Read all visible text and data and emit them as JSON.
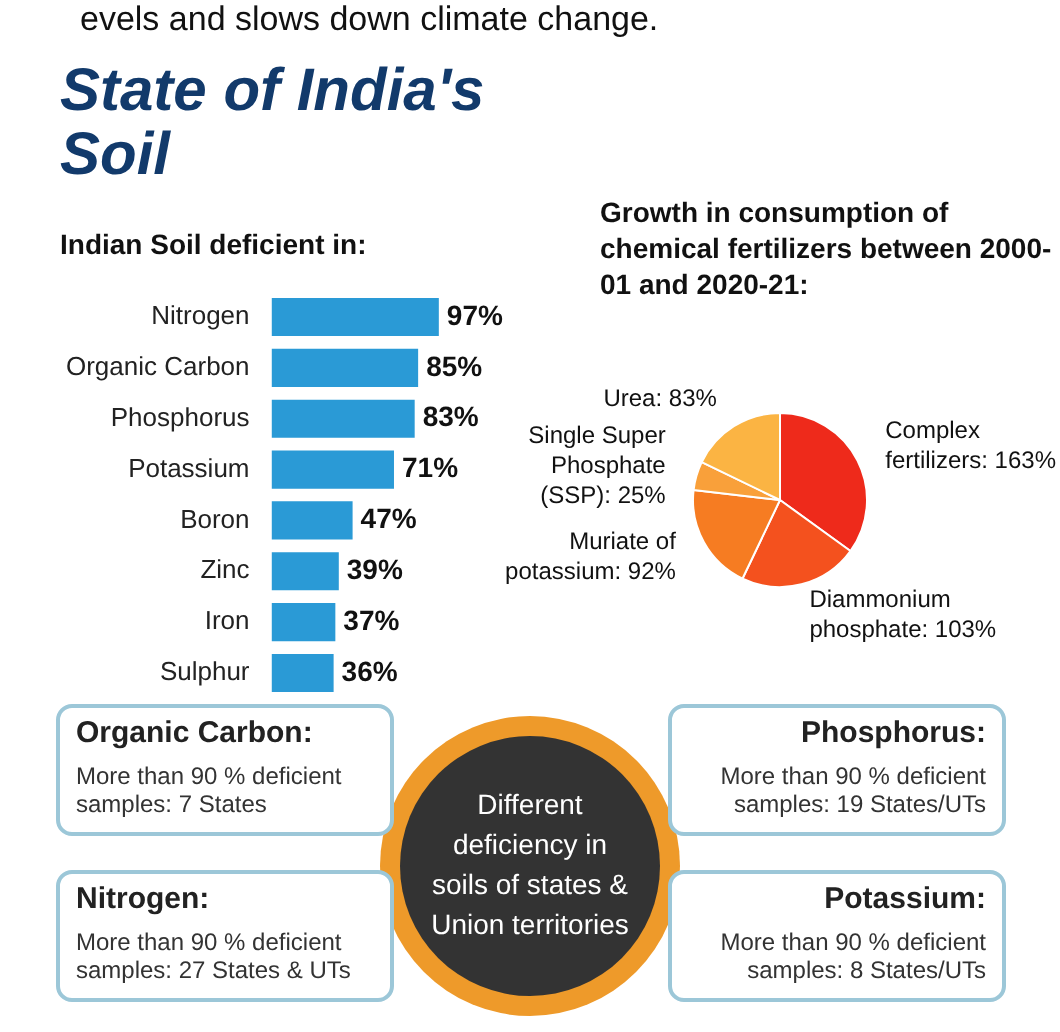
{
  "chart_data": [
    {
      "type": "bar",
      "orientation": "horizontal",
      "title": "State of India's Soil",
      "subtitle": "Indian Soil deficient in:",
      "annotations": [
        "evels and slows down climate change."
      ],
      "categories": [
        "Nitrogen",
        "Organic Carbon",
        "Phosphorus",
        "Potassium",
        "Boron",
        "Zinc",
        "Iron",
        "Sulphur"
      ],
      "values": [
        97,
        85,
        83,
        71,
        47,
        39,
        37,
        36
      ],
      "color": "#2a9ad6",
      "xlim": [
        0,
        100
      ],
      "tick_labels": "y",
      "value_labels": [
        "97%",
        "85%",
        "83%",
        "71%",
        "47%",
        "39%",
        "37%",
        "36%"
      ],
      "legend": false
    },
    {
      "type": "pie",
      "title": "Growth in consumption of chemical fertilizers between 2000-01 and 2020-21:",
      "categories": [
        "Complex fertilizers",
        "Diammonium phosphate",
        "Muriate of potassium",
        "Single Super Phosphate (SSP)",
        "Urea"
      ],
      "values": [
        163,
        103,
        92,
        25,
        83
      ],
      "colors": [
        "#ee2a1b",
        "#f4511e",
        "#f67c22",
        "#f9a03a",
        "#fbb443"
      ],
      "value_labels": [
        "163%",
        "103%",
        "92%",
        "25%",
        "83%"
      ],
      "legend": false
    },
    {
      "type": "other",
      "title": "Different deficiency in soils of states & Union territories",
      "annotations": [
        "Organic Carbon:",
        "More than 90 % deficient samples: 7 States",
        "Phosphorus:",
        "More than 90 % deficient samples: 19 States/UTs",
        "Nitrogen:",
        "More than 90 % deficient samples: 27 States & UTs",
        "Potassium:",
        "More than 90 % deficient samples: 8 States/UTs"
      ]
    }
  ]
}
